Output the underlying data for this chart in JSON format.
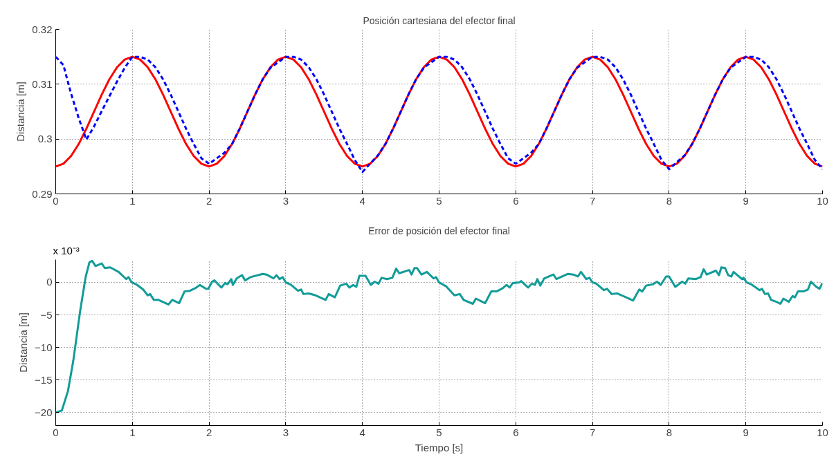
{
  "chart_data": [
    {
      "type": "line",
      "title": "Posición cartesiana del efector final",
      "ylabel": "Distancia [m]",
      "xlim": [
        0,
        10
      ],
      "xticks": [
        0,
        1,
        2,
        3,
        4,
        5,
        6,
        7,
        8,
        9,
        10
      ],
      "ylim": [
        0.29,
        0.32
      ],
      "yticks": [
        0.29,
        0.3,
        0.31,
        0.32
      ],
      "grid": true,
      "x": [
        0,
        0.1,
        0.2,
        0.3,
        0.4,
        0.5,
        0.6,
        0.7,
        0.8,
        0.9,
        1,
        1.1,
        1.2,
        1.3,
        1.4,
        1.5,
        1.6,
        1.7,
        1.8,
        1.9,
        2,
        2.1,
        2.2,
        2.3,
        2.4,
        2.5,
        2.6,
        2.7,
        2.8,
        2.9,
        3,
        3.1,
        3.2,
        3.3,
        3.4,
        3.5,
        3.6,
        3.7,
        3.8,
        3.9,
        4,
        4.1,
        4.2,
        4.3,
        4.4,
        4.5,
        4.6,
        4.7,
        4.8,
        4.9,
        5,
        5.1,
        5.2,
        5.3,
        5.4,
        5.5,
        5.6,
        5.7,
        5.8,
        5.9,
        6,
        6.1,
        6.2,
        6.3,
        6.4,
        6.5,
        6.6,
        6.7,
        6.8,
        6.9,
        7,
        7.1,
        7.2,
        7.3,
        7.4,
        7.5,
        7.6,
        7.7,
        7.8,
        7.9,
        8,
        8.1,
        8.2,
        8.3,
        8.4,
        8.5,
        8.6,
        8.7,
        8.8,
        8.9,
        9,
        9.1,
        9.2,
        9.3,
        9.4,
        9.5,
        9.6,
        9.7,
        9.8,
        9.9,
        10
      ],
      "series": [
        {
          "color": "#ff0000",
          "line_style": "solid",
          "values": [
            0.295,
            0.2955,
            0.2969,
            0.2991,
            0.3019,
            0.305,
            0.3081,
            0.3109,
            0.3131,
            0.3145,
            0.315,
            0.3145,
            0.3131,
            0.3109,
            0.3081,
            0.305,
            0.3019,
            0.2991,
            0.2969,
            0.2955,
            0.295,
            0.2955,
            0.2969,
            0.2991,
            0.3019,
            0.305,
            0.3081,
            0.3109,
            0.3131,
            0.3145,
            0.315,
            0.3145,
            0.3131,
            0.3109,
            0.3081,
            0.305,
            0.3019,
            0.2991,
            0.2969,
            0.2955,
            0.295,
            0.2955,
            0.2969,
            0.2991,
            0.3019,
            0.305,
            0.3081,
            0.3109,
            0.3131,
            0.3145,
            0.315,
            0.3145,
            0.3131,
            0.3109,
            0.3081,
            0.305,
            0.3019,
            0.2991,
            0.2969,
            0.2955,
            0.295,
            0.2955,
            0.2969,
            0.2991,
            0.3019,
            0.305,
            0.3081,
            0.3109,
            0.3131,
            0.3145,
            0.315,
            0.3145,
            0.3131,
            0.3109,
            0.3081,
            0.305,
            0.3019,
            0.2991,
            0.2969,
            0.2955,
            0.295,
            0.2955,
            0.2969,
            0.2991,
            0.3019,
            0.305,
            0.3081,
            0.3109,
            0.3131,
            0.3145,
            0.315,
            0.3145,
            0.3131,
            0.3109,
            0.3081,
            0.305,
            0.3019,
            0.2991,
            0.2969,
            0.2955,
            0.295
          ]
        },
        {
          "color": "#0000ff",
          "line_style": "dashed",
          "values": [
            0.315,
            0.3135,
            0.3083,
            0.3038,
            0.2999,
            0.3023,
            0.3051,
            0.3078,
            0.3105,
            0.313,
            0.315,
            0.315,
            0.3145,
            0.3131,
            0.3109,
            0.3081,
            0.305,
            0.3019,
            0.2991,
            0.2965,
            0.2955,
            0.2965,
            0.2975,
            0.2991,
            0.3019,
            0.305,
            0.3081,
            0.3109,
            0.313,
            0.314,
            0.315,
            0.315,
            0.3145,
            0.3131,
            0.3109,
            0.3081,
            0.305,
            0.3019,
            0.2991,
            0.2962,
            0.294,
            0.2955,
            0.297,
            0.2991,
            0.3019,
            0.305,
            0.3081,
            0.3109,
            0.313,
            0.314,
            0.315,
            0.315,
            0.3145,
            0.3131,
            0.3109,
            0.3081,
            0.305,
            0.3019,
            0.2991,
            0.2965,
            0.2955,
            0.2965,
            0.2975,
            0.2991,
            0.3019,
            0.305,
            0.3081,
            0.3109,
            0.313,
            0.314,
            0.315,
            0.315,
            0.3145,
            0.3131,
            0.3109,
            0.3081,
            0.305,
            0.3019,
            0.2991,
            0.2962,
            0.2945,
            0.2958,
            0.297,
            0.2991,
            0.3019,
            0.305,
            0.3081,
            0.3109,
            0.313,
            0.314,
            0.315,
            0.315,
            0.3145,
            0.3131,
            0.3109,
            0.3081,
            0.305,
            0.3019,
            0.2991,
            0.2962,
            0.2945
          ]
        }
      ]
    },
    {
      "type": "line",
      "title": "Error de posición del efector final",
      "xlabel": "Tiempo [s]",
      "ylabel": "Distancia [m]",
      "annotations": [
        "x 10⁻³"
      ],
      "xlim": [
        0,
        10
      ],
      "xticks": [
        0,
        1,
        2,
        3,
        4,
        5,
        6,
        7,
        8,
        9,
        10
      ],
      "ylim": [
        -22,
        3.5
      ],
      "yticks": [
        -20,
        -15,
        -10,
        -5,
        0
      ],
      "grid": true,
      "series": [
        {
          "color": "#129c98",
          "line_style": "solid",
          "x": [
            0,
            0.08,
            0.16,
            0.23,
            0.32,
            0.39,
            0.44,
            0.475,
            0.52,
            0.6,
            0.64,
            0.71,
            0.82,
            0.92,
            0.95,
            0.99,
            1.05,
            1.14,
            1.2,
            1.23,
            1.28,
            1.34,
            1.47,
            1.52,
            1.61,
            1.68,
            1.75,
            1.82,
            1.88,
            1.96,
            1.99,
            2.04,
            2.07,
            2.16,
            2.21,
            2.24,
            2.29,
            2.31,
            2.36,
            2.43,
            2.47,
            2.54,
            2.7,
            2.75,
            2.84,
            2.88,
            2.92,
            2.96,
            3,
            3.07,
            3.16,
            3.2,
            3.23,
            3.3,
            3.39,
            3.52,
            3.56,
            3.64,
            3.71,
            3.79,
            3.83,
            3.88,
            3.92,
            3.96,
            4.04,
            4.11,
            4.16,
            4.21,
            4.25,
            4.32,
            4.39,
            4.44,
            4.48,
            4.61,
            4.64,
            4.68,
            4.71,
            4.77,
            4.84,
            4.93,
            4.96,
            5,
            5.09,
            5.2,
            5.27,
            5.32,
            5.44,
            5.48,
            5.6,
            5.68,
            5.75,
            5.83,
            5.88,
            5.92,
            5.96,
            6.05,
            6.07,
            6.16,
            6.21,
            6.25,
            6.28,
            6.32,
            6.37,
            6.49,
            6.53,
            6.68,
            6.75,
            6.81,
            6.85,
            6.92,
            6.96,
            7,
            7.05,
            7.15,
            7.19,
            7.25,
            7.32,
            7.46,
            7.53,
            7.61,
            7.65,
            7.7,
            7.79,
            7.84,
            7.89,
            7.96,
            8,
            8.08,
            8.17,
            8.21,
            8.25,
            8.35,
            8.41,
            8.45,
            8.49,
            8.61,
            8.65,
            8.68,
            8.73,
            8.77,
            8.81,
            8.84,
            8.91,
            8.95,
            8.97,
            9.01,
            9.07,
            9.18,
            9.21,
            9.25,
            9.29,
            9.33,
            9.4,
            9.45,
            9.49,
            9.56,
            9.61,
            9.64,
            9.68,
            9.75,
            9.81,
            9.85,
            9.92,
            9.96,
            10
          ],
          "values": [
            -20,
            -19.7,
            -16.7,
            -12,
            -4.3,
            0.8,
            3.1,
            3.3,
            2.5,
            2.9,
            2.2,
            2.3,
            1.6,
            0.5,
            0.8,
            0,
            -0.3,
            -1.1,
            -2,
            -1.8,
            -2.7,
            -2.7,
            -3.4,
            -2.7,
            -3.2,
            -1.4,
            -1.3,
            -0.9,
            -0.4,
            -1,
            -1,
            0.1,
            0.3,
            -0.8,
            -0.1,
            -0.3,
            0.5,
            -0.4,
            0.6,
            1.1,
            0.3,
            0.8,
            1.3,
            1.2,
            0.6,
            1.1,
            0.5,
            0.8,
            0,
            -0.4,
            -1.3,
            -1.1,
            -1.8,
            -1.7,
            -2,
            -2.7,
            -1.8,
            -2.3,
            -0.5,
            -0.2,
            -0.8,
            -0.4,
            -0.7,
            1,
            1,
            -0.4,
            0.1,
            -0.2,
            0.7,
            0.5,
            0.7,
            2.1,
            1.4,
            1.9,
            1.2,
            2.2,
            2.2,
            1.2,
            1.6,
            0.6,
            0.8,
            0,
            -0.6,
            -2,
            -1.8,
            -2.7,
            -3.3,
            -2.5,
            -3.2,
            -1.4,
            -1.4,
            -0.9,
            -0.4,
            -0.8,
            -0.1,
            0,
            0.2,
            -0.8,
            -0.2,
            -0.4,
            0.5,
            -0.5,
            0.6,
            1.2,
            0.5,
            1.3,
            1.2,
            0.9,
            1.6,
            0.5,
            0.7,
            0,
            -0.2,
            -1.2,
            -1,
            -1.8,
            -1.7,
            -2.4,
            -2.8,
            -1.1,
            -1.4,
            -0.5,
            -0.3,
            0.1,
            -0.4,
            0.9,
            0.9,
            -0.7,
            0.1,
            -0.2,
            0.6,
            0.5,
            0.8,
            2,
            1.2,
            1.8,
            1.1,
            2.3,
            2.2,
            1.1,
            0.9,
            1.6,
            0.9,
            0.5,
            0.7,
            0,
            -0.3,
            -1.2,
            -1,
            -1.8,
            -1.7,
            -2.7,
            -3,
            -3.3,
            -2.5,
            -3,
            -2.1,
            -2.3,
            -1.4,
            -1.4,
            -1.1,
            0.1,
            -0.7,
            -1,
            -0.1
          ]
        }
      ]
    }
  ]
}
